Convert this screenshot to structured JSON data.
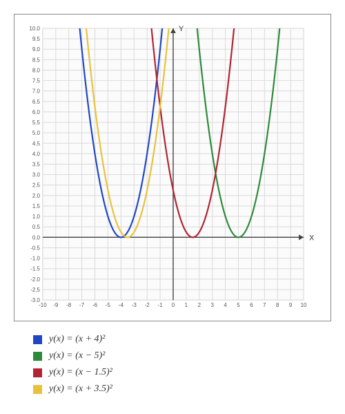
{
  "chart": {
    "type": "line",
    "xlabel": "X",
    "ylabel": "Y",
    "label_fontsize": 11,
    "tick_fontsize": 8,
    "background": "#ffffff",
    "plot_bg": "#fbfbfb",
    "grid_color": "#d9d9d9",
    "axis_color": "#404040",
    "xlim": [
      -10,
      10
    ],
    "ylim": [
      -3,
      10
    ],
    "xticks": [
      -10,
      -9,
      -8,
      -7,
      -6,
      -5,
      -4,
      -3,
      -2,
      -1,
      0,
      1,
      2,
      3,
      4,
      5,
      6,
      7,
      8,
      9,
      10
    ],
    "yticks": [
      -3,
      -2.5,
      -2,
      -1.5,
      -1,
      -0.5,
      0,
      0.5,
      1,
      1.5,
      2,
      2.5,
      3,
      3.5,
      4,
      4.5,
      5,
      5.5,
      6,
      6.5,
      7,
      7.5,
      8,
      8.5,
      9,
      9.5,
      10
    ],
    "line_width": 2.2,
    "series": [
      {
        "name": "s1",
        "label": "y(x) = (x + 4)²",
        "color": "#2046c6",
        "h": -4
      },
      {
        "name": "s2",
        "label": "y(x) = (x − 5)²",
        "color": "#2c8a3a",
        "h": 5
      },
      {
        "name": "s3",
        "label": "y(x) = (x − 1.5)²",
        "color": "#b02433",
        "h": 1.5
      },
      {
        "name": "s4",
        "label": "y(x) = (x + 3.5)²",
        "color": "#e9c23b",
        "h": -3.5
      }
    ]
  }
}
